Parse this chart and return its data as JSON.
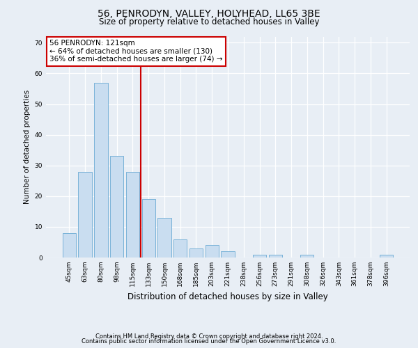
{
  "title": "56, PENRODYN, VALLEY, HOLYHEAD, LL65 3BE",
  "subtitle": "Size of property relative to detached houses in Valley",
  "xlabel": "Distribution of detached houses by size in Valley",
  "ylabel": "Number of detached properties",
  "bar_color": "#c9ddf0",
  "bar_edge_color": "#6aaad4",
  "categories": [
    "45sqm",
    "63sqm",
    "80sqm",
    "98sqm",
    "115sqm",
    "133sqm",
    "150sqm",
    "168sqm",
    "185sqm",
    "203sqm",
    "221sqm",
    "238sqm",
    "256sqm",
    "273sqm",
    "291sqm",
    "308sqm",
    "326sqm",
    "343sqm",
    "361sqm",
    "378sqm",
    "396sqm"
  ],
  "values": [
    8,
    28,
    57,
    33,
    28,
    19,
    13,
    6,
    3,
    4,
    2,
    0,
    1,
    1,
    0,
    1,
    0,
    0,
    0,
    0,
    1
  ],
  "ylim": [
    0,
    72
  ],
  "yticks": [
    0,
    10,
    20,
    30,
    40,
    50,
    60,
    70
  ],
  "annotation_text": "56 PENRODYN: 121sqm\n← 64% of detached houses are smaller (130)\n36% of semi-detached houses are larger (74) →",
  "vline_color": "#cc0000",
  "annotation_box_color": "#ffffff",
  "annotation_box_edge_color": "#cc0000",
  "footer1": "Contains HM Land Registry data © Crown copyright and database right 2024.",
  "footer2": "Contains public sector information licensed under the Open Government Licence v3.0.",
  "background_color": "#e8eef5",
  "grid_color": "#ffffff",
  "title_fontsize": 10,
  "subtitle_fontsize": 8.5,
  "ylabel_fontsize": 7.5,
  "xlabel_fontsize": 8.5,
  "tick_fontsize": 6.5,
  "annotation_fontsize": 7.5,
  "footer_fontsize": 6
}
